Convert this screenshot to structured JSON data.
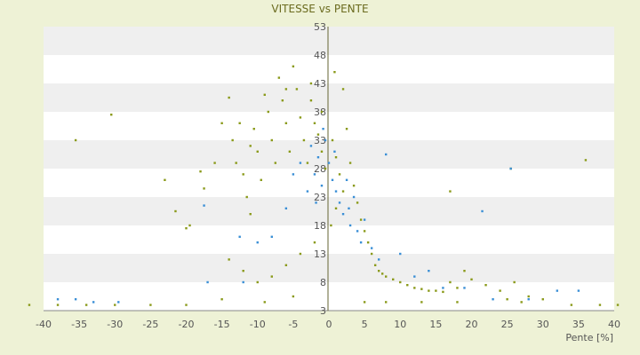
{
  "chart_data": {
    "type": "scatter",
    "title": "VITESSE vs PENTE",
    "xlabel": "Pente [%]",
    "ylabel": "",
    "xlim": [
      -40,
      40
    ],
    "ylim": [
      3,
      53
    ],
    "x_ticks": [
      -40,
      -35,
      -30,
      -25,
      -20,
      -15,
      -10,
      -5,
      0,
      5,
      10,
      15,
      20,
      25,
      30,
      35,
      40
    ],
    "y_ticks": [
      3,
      8,
      13,
      18,
      23,
      28,
      33,
      38,
      43,
      48,
      53
    ],
    "grid": "horizontal alternating bands",
    "series": [
      {
        "color": "#8a9a1a",
        "values_xy": [
          [
            -30.5,
            37.5
          ],
          [
            -35.5,
            33
          ],
          [
            -23,
            26
          ],
          [
            -21.5,
            20.5
          ],
          [
            -20,
            17.5
          ],
          [
            -19.5,
            18
          ],
          [
            -18,
            27.5
          ],
          [
            -17.5,
            24.5
          ],
          [
            -16,
            29
          ],
          [
            -15,
            36
          ],
          [
            -14,
            40.5
          ],
          [
            -13.5,
            33
          ],
          [
            -13,
            29
          ],
          [
            -12.5,
            36
          ],
          [
            -12,
            27
          ],
          [
            -11.5,
            23
          ],
          [
            -11,
            20
          ],
          [
            -10.5,
            35
          ],
          [
            -10,
            31
          ],
          [
            -9.5,
            26
          ],
          [
            -9,
            41
          ],
          [
            -8.5,
            38
          ],
          [
            -8,
            33
          ],
          [
            -7.5,
            29
          ],
          [
            -7,
            44
          ],
          [
            -6.5,
            40
          ],
          [
            -6,
            36
          ],
          [
            -5.5,
            31
          ],
          [
            -5,
            46
          ],
          [
            -4.5,
            42
          ],
          [
            -4,
            37
          ],
          [
            -3.5,
            33
          ],
          [
            -3,
            29
          ],
          [
            -2.5,
            40
          ],
          [
            -2,
            36
          ],
          [
            -1.5,
            34
          ],
          [
            -1,
            31
          ],
          [
            -0.5,
            28
          ],
          [
            0.5,
            33
          ],
          [
            1,
            30
          ],
          [
            1.5,
            27
          ],
          [
            2,
            42
          ],
          [
            2.5,
            35
          ],
          [
            3,
            29
          ],
          [
            3.5,
            25
          ],
          [
            4,
            22
          ],
          [
            4.5,
            19
          ],
          [
            5,
            17
          ],
          [
            5.5,
            15
          ],
          [
            6,
            13
          ],
          [
            6.5,
            11
          ],
          [
            7,
            10
          ],
          [
            7.5,
            9.5
          ],
          [
            8,
            9
          ],
          [
            9,
            8.5
          ],
          [
            10,
            8
          ],
          [
            11,
            7.5
          ],
          [
            12,
            7
          ],
          [
            13,
            6.8
          ],
          [
            14,
            6.5
          ],
          [
            15,
            6.5
          ],
          [
            16,
            6.3
          ],
          [
            17,
            8
          ],
          [
            18,
            7
          ],
          [
            19,
            10
          ],
          [
            20,
            8.5
          ],
          [
            22,
            7.5
          ],
          [
            24,
            6.5
          ],
          [
            25,
            5
          ],
          [
            26,
            8
          ],
          [
            28,
            5.5
          ],
          [
            30,
            5
          ],
          [
            36,
            29.5
          ],
          [
            25.5,
            28
          ],
          [
            17,
            24
          ],
          [
            -14,
            12
          ],
          [
            -12,
            10
          ],
          [
            -10,
            8
          ],
          [
            -8,
            9
          ],
          [
            -6,
            11
          ],
          [
            -4,
            13
          ],
          [
            -2,
            15
          ],
          [
            0.3,
            18
          ],
          [
            1,
            21
          ],
          [
            2,
            24
          ],
          [
            -1,
            38
          ],
          [
            -2.5,
            43
          ],
          [
            0.8,
            45
          ],
          [
            -6,
            42
          ],
          [
            -11,
            32
          ],
          [
            -15,
            5
          ],
          [
            -20,
            4
          ],
          [
            -25,
            4
          ],
          [
            -30,
            4
          ],
          [
            -34,
            4
          ],
          [
            -38,
            4
          ],
          [
            -42,
            4
          ],
          [
            -9,
            4.5
          ],
          [
            -5,
            5.5
          ],
          [
            5,
            4.5
          ],
          [
            8,
            4.5
          ],
          [
            13,
            4.5
          ],
          [
            18,
            4.5
          ],
          [
            27,
            4.5
          ],
          [
            34,
            4
          ],
          [
            38,
            4
          ],
          [
            40.5,
            4
          ]
        ]
      },
      {
        "color": "#3a8fd6",
        "values_xy": [
          [
            -38,
            5
          ],
          [
            -35.5,
            5
          ],
          [
            -33,
            4.5
          ],
          [
            -29.5,
            4.5
          ],
          [
            -17.5,
            21.5
          ],
          [
            -17,
            8
          ],
          [
            -12.5,
            16
          ],
          [
            -12,
            8
          ],
          [
            -10,
            15
          ],
          [
            -8,
            16
          ],
          [
            -6,
            21
          ],
          [
            -5,
            27
          ],
          [
            -4,
            29
          ],
          [
            -3,
            24
          ],
          [
            -2.5,
            32
          ],
          [
            -2,
            27
          ],
          [
            -1.5,
            30
          ],
          [
            -1,
            25
          ],
          [
            -0.5,
            33
          ],
          [
            0,
            29
          ],
          [
            0.5,
            26
          ],
          [
            1,
            24
          ],
          [
            1.5,
            22
          ],
          [
            2,
            20
          ],
          [
            2.5,
            26
          ],
          [
            3,
            18
          ],
          [
            3.5,
            23
          ],
          [
            4,
            17
          ],
          [
            4.5,
            15
          ],
          [
            5,
            19
          ],
          [
            6,
            14
          ],
          [
            7,
            12
          ],
          [
            8,
            30.5
          ],
          [
            10,
            13
          ],
          [
            12,
            9
          ],
          [
            14,
            10
          ],
          [
            16,
            7
          ],
          [
            19,
            7
          ],
          [
            21.5,
            20.5
          ],
          [
            23,
            5
          ],
          [
            25.5,
            28
          ],
          [
            28,
            5
          ],
          [
            32,
            6.5
          ],
          [
            35,
            6.5
          ],
          [
            -0.8,
            35
          ],
          [
            0.8,
            31
          ],
          [
            -1.8,
            22
          ],
          [
            2.8,
            21
          ]
        ]
      }
    ]
  }
}
